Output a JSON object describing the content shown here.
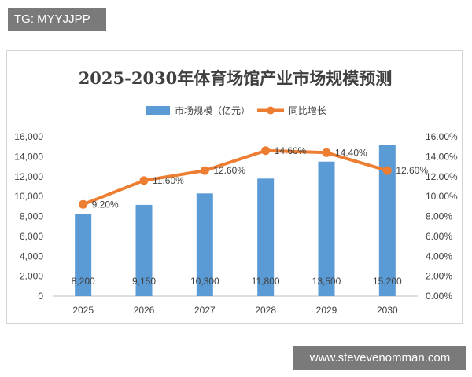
{
  "overlay": {
    "tg_label": "TG: MYYJJPP",
    "site_label": "www.stevevenomman.com"
  },
  "chart_data": {
    "type": "bar",
    "title": "2025-2030年体育场馆产业市场规模预测",
    "categories": [
      "2025",
      "2026",
      "2027",
      "2028",
      "2029",
      "2030"
    ],
    "series": [
      {
        "name": "市场规模（亿元）",
        "type": "bar",
        "axis": "left",
        "values": [
          8200,
          9150,
          10300,
          11800,
          13500,
          15200
        ],
        "labels": [
          "8,200",
          "9,150",
          "10,300",
          "11,800",
          "13,500",
          "15,200"
        ],
        "color": "#5b9bd5"
      },
      {
        "name": "同比增长",
        "type": "line",
        "axis": "right",
        "values": [
          9.2,
          11.6,
          12.6,
          14.6,
          14.4,
          12.6
        ],
        "labels": [
          "9.20%",
          "11.60%",
          "12.60%",
          "14.60%",
          "14.40%",
          "12.60%"
        ],
        "color": "#ed7d31"
      }
    ],
    "y_left": {
      "min": 0,
      "max": 16000,
      "ticks": [
        "0",
        "2,000",
        "4,000",
        "6,000",
        "8,000",
        "10,000",
        "12,000",
        "14,000",
        "16,000"
      ]
    },
    "y_right": {
      "min": 0,
      "max": 16,
      "ticks": [
        "0.00%",
        "2.00%",
        "4.00%",
        "6.00%",
        "8.00%",
        "10.00%",
        "12.00%",
        "14.00%",
        "16.00%"
      ]
    },
    "legend_position": "top-center",
    "grid": false,
    "title_color": "#404040",
    "axis_text_color": "#404040"
  }
}
